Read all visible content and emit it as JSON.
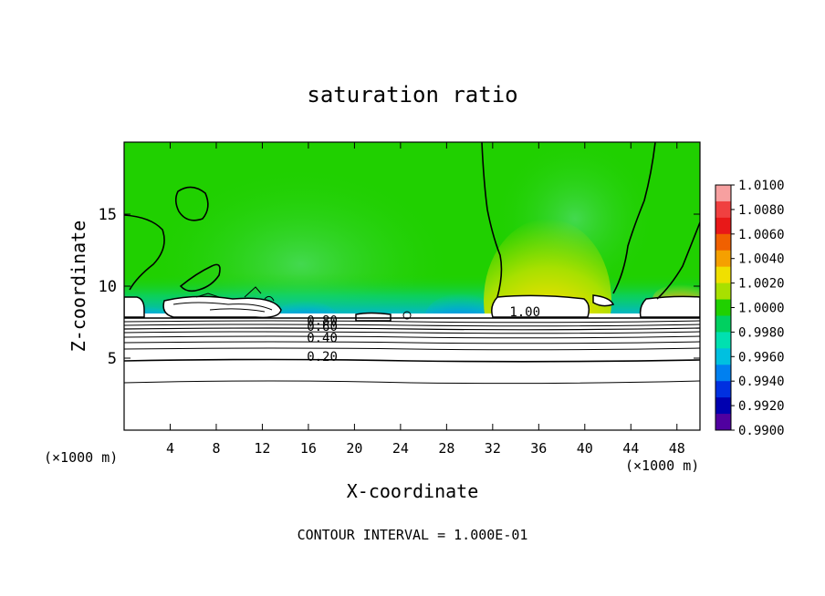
{
  "chart_data": {
    "type": "heatmap",
    "title": "saturation ratio",
    "xlabel": "X-coordinate",
    "ylabel": "Z-coordinate",
    "x_unit_left": "(×1000 m)",
    "x_unit_right": "(×1000 m)",
    "footer": "CONTOUR INTERVAL = 1.000E-01",
    "xlim": [
      0,
      50
    ],
    "ylim": [
      0,
      20
    ],
    "x_ticks": [
      4,
      8,
      12,
      16,
      20,
      24,
      28,
      32,
      36,
      40,
      44,
      48
    ],
    "y_ticks": [
      5,
      10,
      15
    ],
    "grid": false,
    "colorbar": {
      "position": "right",
      "min": 0.99,
      "max": 1.01,
      "ticks": [
        "1.0100",
        "1.0080",
        "1.0060",
        "1.0040",
        "1.0020",
        "1.0000",
        "0.9980",
        "0.9960",
        "0.9940",
        "0.9920",
        "0.9900"
      ],
      "colors": [
        "#f7a0a0",
        "#f04040",
        "#e81818",
        "#f06000",
        "#f5a000",
        "#f0e000",
        "#a8e000",
        "#20d000",
        "#00d060",
        "#00e0b0",
        "#00c0e0",
        "#0080f0",
        "#0030e0",
        "#0000b0",
        "#5000a0"
      ]
    },
    "contour_labels": [
      {
        "text": "0.80",
        "x": 17.2,
        "y": 7.3
      },
      {
        "text": "0.60",
        "x": 17.2,
        "y": 6.9
      },
      {
        "text": "0.40",
        "x": 17.2,
        "y": 6.1
      },
      {
        "text": "0.20",
        "x": 17.2,
        "y": 4.8
      },
      {
        "text": "1.00",
        "x": 34.8,
        "y": 7.9
      }
    ]
  }
}
